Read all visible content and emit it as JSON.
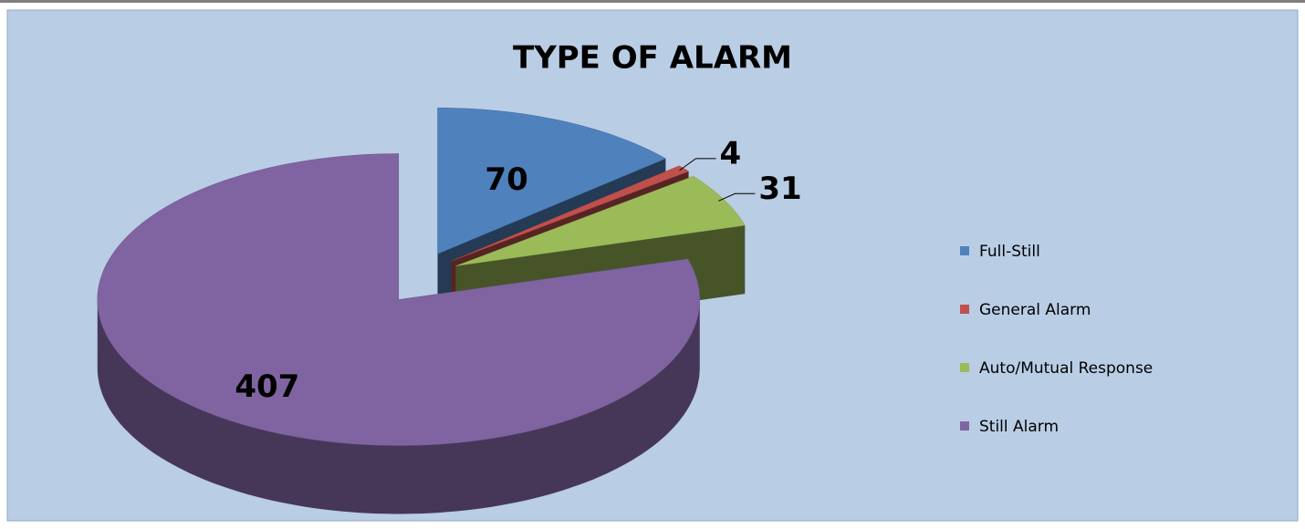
{
  "chart_data": {
    "type": "pie",
    "title": "TYPE OF ALARM",
    "categories": [
      "Full-Still",
      "General Alarm",
      "Auto/Mutual Response",
      "Still Alarm"
    ],
    "values": [
      70,
      4,
      31,
      407
    ],
    "colors": [
      "#4f81bd",
      "#c0504d",
      "#9bbb59",
      "#8064a2"
    ],
    "legend": "right"
  }
}
